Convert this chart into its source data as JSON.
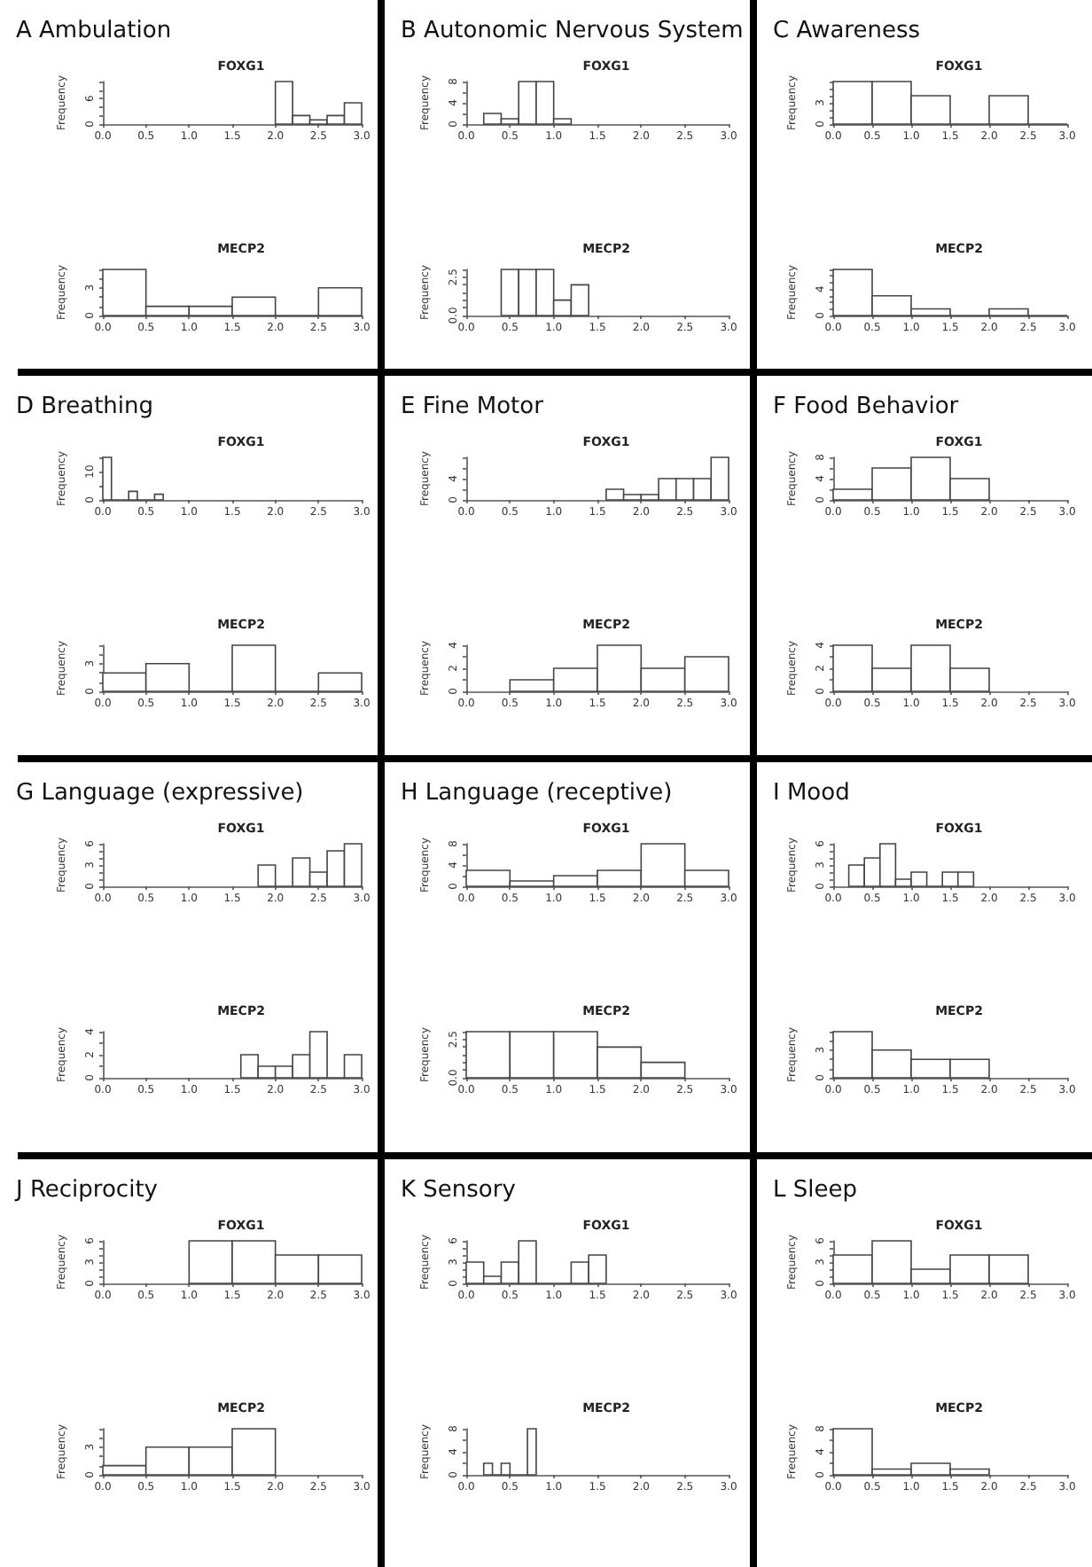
{
  "chart_data": [
    {
      "type": "histogram",
      "title": "A Ambulation",
      "subtitle": "FOXG1",
      "ylabel": "Frequency",
      "bins": [
        2.0,
        2.2,
        2.4,
        2.6,
        2.8,
        3.0
      ],
      "values": [
        10,
        2,
        1,
        2,
        5
      ],
      "xlim": [
        0,
        3
      ],
      "xticks": [
        {
          "value": 0,
          "label": "0.0"
        },
        0.5,
        {
          "value": 1,
          "label": "1.0"
        },
        1.5,
        {
          "value": 2,
          "label": "2.0"
        },
        2.5,
        {
          "value": 3,
          "label": "3.0"
        }
      ],
      "ylim": [
        0,
        10
      ],
      "yticks": [
        0,
        {
          "value": 2,
          "label": null
        },
        {
          "value": 4,
          "label": null
        },
        6,
        {
          "value": 8,
          "label": null
        },
        {
          "value": 10,
          "label": null
        }
      ]
    },
    {
      "type": "histogram",
      "title": "MECP2",
      "ylabel": "Frequency",
      "bins": [
        0,
        0.5,
        1,
        1.5,
        2,
        2.5,
        3
      ],
      "values": [
        5,
        1,
        1,
        2,
        0,
        3
      ],
      "xlim": [
        0,
        3
      ],
      "xticks": [
        {
          "value": 0,
          "label": "0.0"
        },
        0.5,
        {
          "value": 1,
          "label": "1.0"
        },
        1.5,
        {
          "value": 2,
          "label": "2.0"
        },
        2.5,
        {
          "value": 3,
          "label": "3.0"
        }
      ],
      "ylim": [
        0,
        5
      ],
      "yticks": [
        0,
        {
          "value": 1,
          "label": null
        },
        {
          "value": 2,
          "label": null
        },
        3,
        {
          "value": 4,
          "label": null
        },
        {
          "value": 5,
          "label": null
        }
      ]
    },
    {
      "type": "histogram",
      "title": "B Autonomic Nervous System",
      "subtitle": "FOXG1",
      "ylabel": "Frequency",
      "bins": [
        0.2,
        0.4,
        0.6,
        0.8,
        1.0,
        1.2
      ],
      "values": [
        2,
        1,
        8,
        8,
        1
      ],
      "xlim": [
        0,
        3
      ],
      "xticks": [
        {
          "value": 0,
          "label": "0.0"
        },
        0.5,
        {
          "value": 1,
          "label": "1.0"
        },
        1.5,
        {
          "value": 2,
          "label": "2.0"
        },
        2.5,
        {
          "value": 3,
          "label": "3.0"
        }
      ],
      "ylim": [
        0,
        8
      ],
      "yticks": [
        0,
        {
          "value": 2,
          "label": null
        },
        4,
        {
          "value": 6,
          "label": null
        },
        8
      ]
    },
    {
      "type": "histogram",
      "title": "MECP2",
      "ylabel": "Frequency",
      "bins": [
        0.4,
        0.6,
        0.8,
        1.0,
        1.2,
        1.4
      ],
      "values": [
        3,
        3,
        3,
        1,
        2
      ],
      "xlim": [
        0,
        3
      ],
      "xticks": [
        {
          "value": 0,
          "label": "0.0"
        },
        0.5,
        {
          "value": 1,
          "label": "1.0"
        },
        1.5,
        {
          "value": 2,
          "label": "2.0"
        },
        2.5,
        {
          "value": 3,
          "label": "3.0"
        }
      ],
      "ylim": [
        0,
        3
      ],
      "yticks": [
        {
          "value": 0,
          "label": "0.0"
        },
        {
          "value": 0.5,
          "label": null
        },
        {
          "value": 1,
          "label": null
        },
        {
          "value": 1.5,
          "label": null
        },
        {
          "value": 2,
          "label": null
        },
        {
          "value": 2.5,
          "label": "2.5"
        },
        {
          "value": 3,
          "label": null
        }
      ]
    },
    {
      "type": "histogram",
      "title": "C Awareness",
      "subtitle": "FOXG1",
      "ylabel": "Frequency",
      "bins": [
        0,
        0.5,
        1,
        1.5,
        2,
        2.5,
        3
      ],
      "values": [
        6,
        6,
        4,
        0,
        4,
        0
      ],
      "xlim": [
        0,
        3
      ],
      "xticks": [
        {
          "value": 0,
          "label": "0.0"
        },
        0.5,
        {
          "value": 1,
          "label": "1.0"
        },
        1.5,
        {
          "value": 2,
          "label": "2.0"
        },
        2.5,
        {
          "value": 3,
          "label": "3.0"
        }
      ],
      "ylim": [
        0,
        6
      ],
      "yticks": [
        0,
        {
          "value": 1,
          "label": null
        },
        {
          "value": 2,
          "label": null
        },
        3,
        {
          "value": 4,
          "label": null
        },
        {
          "value": 5,
          "label": null
        },
        {
          "value": 6,
          "label": null
        }
      ]
    },
    {
      "type": "histogram",
      "title": "MECP2",
      "ylabel": "Frequency",
      "bins": [
        0,
        0.5,
        1,
        1.5,
        2,
        2.5,
        3
      ],
      "values": [
        7,
        3,
        1,
        0,
        1,
        0
      ],
      "xlim": [
        0,
        3
      ],
      "xticks": [
        {
          "value": 0,
          "label": "0.0"
        },
        0.5,
        {
          "value": 1,
          "label": "1.0"
        },
        1.5,
        {
          "value": 2,
          "label": "2.0"
        },
        2.5,
        {
          "value": 3,
          "label": "3.0"
        }
      ],
      "ylim": [
        0,
        7
      ],
      "yticks": [
        0,
        {
          "value": 1,
          "label": null
        },
        {
          "value": 2,
          "label": null
        },
        {
          "value": 3,
          "label": null
        },
        4,
        {
          "value": 5,
          "label": null
        },
        {
          "value": 6,
          "label": null
        },
        {
          "value": 7,
          "label": null
        }
      ]
    },
    {
      "type": "histogram",
      "title": "D Breathing",
      "subtitle": "FOXG1",
      "ylabel": "Frequency",
      "bins": [
        0,
        0.1,
        0.2,
        0.3,
        0.4,
        0.5,
        0.6,
        0.7
      ],
      "values": [
        15,
        0,
        0,
        3,
        0,
        0,
        2
      ],
      "xlim": [
        0,
        3
      ],
      "xticks": [
        {
          "value": 0,
          "label": "0.0"
        },
        0.5,
        {
          "value": 1,
          "label": "1.0"
        },
        1.5,
        {
          "value": 2,
          "label": "2.0"
        },
        2.5,
        {
          "value": 3,
          "label": "3.0"
        }
      ],
      "ylim": [
        0,
        15
      ],
      "yticks": [
        0,
        {
          "value": 5,
          "label": null
        },
        10,
        {
          "value": 15,
          "label": null
        }
      ]
    },
    {
      "type": "histogram",
      "title": "MECP2",
      "ylabel": "Frequency",
      "bins": [
        0,
        0.5,
        1,
        1.5,
        2,
        2.5,
        3
      ],
      "values": [
        2,
        3,
        0,
        5,
        0,
        2
      ],
      "xlim": [
        0,
        3
      ],
      "xticks": [
        {
          "value": 0,
          "label": "0.0"
        },
        0.5,
        {
          "value": 1,
          "label": "1.0"
        },
        1.5,
        {
          "value": 2,
          "label": "2.0"
        },
        2.5,
        {
          "value": 3,
          "label": "3.0"
        }
      ],
      "ylim": [
        0,
        5
      ],
      "yticks": [
        0,
        {
          "value": 1,
          "label": null
        },
        {
          "value": 2,
          "label": null
        },
        3,
        {
          "value": 4,
          "label": null
        },
        {
          "value": 5,
          "label": null
        }
      ]
    },
    {
      "type": "histogram",
      "title": "E Fine Motor",
      "subtitle": "FOXG1",
      "ylabel": "Frequency",
      "bins": [
        1.6,
        1.8,
        2.0,
        2.2,
        2.4,
        2.6,
        2.8,
        3.0
      ],
      "values": [
        2,
        1,
        1,
        4,
        4,
        4,
        8
      ],
      "xlim": [
        0,
        3
      ],
      "xticks": [
        {
          "value": 0,
          "label": "0.0"
        },
        0.5,
        {
          "value": 1,
          "label": "1.0"
        },
        1.5,
        {
          "value": 2,
          "label": "2.0"
        },
        2.5,
        {
          "value": 3,
          "label": "3.0"
        }
      ],
      "ylim": [
        0,
        8
      ],
      "yticks": [
        0,
        {
          "value": 2,
          "label": null
        },
        4,
        {
          "value": 6,
          "label": null
        },
        {
          "value": 8,
          "label": null
        }
      ]
    },
    {
      "type": "histogram",
      "title": "MECP2",
      "ylabel": "Frequency",
      "bins": [
        0.5,
        1,
        1.5,
        2,
        2.5,
        3
      ],
      "values": [
        1,
        2,
        4,
        2,
        3
      ],
      "xlim": [
        0,
        3
      ],
      "xticks": [
        {
          "value": 0,
          "label": "0.0"
        },
        0.5,
        {
          "value": 1,
          "label": "1.0"
        },
        1.5,
        {
          "value": 2,
          "label": "2.0"
        },
        2.5,
        {
          "value": 3,
          "label": "3.0"
        }
      ],
      "ylim": [
        0,
        4
      ],
      "yticks": [
        0,
        {
          "value": 1,
          "label": null
        },
        2,
        {
          "value": 3,
          "label": null
        },
        4
      ]
    },
    {
      "type": "histogram",
      "title": "F Food Behavior",
      "subtitle": "FOXG1",
      "ylabel": "Frequency",
      "bins": [
        0,
        0.5,
        1,
        1.5,
        2
      ],
      "values": [
        2,
        6,
        8,
        4
      ],
      "xlim": [
        0,
        3
      ],
      "xticks": [
        {
          "value": 0,
          "label": "0.0"
        },
        0.5,
        {
          "value": 1,
          "label": "1.0"
        },
        1.5,
        {
          "value": 2,
          "label": "2.0"
        },
        2.5,
        {
          "value": 3,
          "label": "3.0"
        }
      ],
      "ylim": [
        0,
        8
      ],
      "yticks": [
        0,
        {
          "value": 2,
          "label": null
        },
        4,
        {
          "value": 6,
          "label": null
        },
        8
      ]
    },
    {
      "type": "histogram",
      "title": "MECP2",
      "ylabel": "Frequency",
      "bins": [
        0,
        0.5,
        1,
        1.5,
        2
      ],
      "values": [
        4,
        2,
        4,
        2
      ],
      "xlim": [
        0,
        3
      ],
      "xticks": [
        {
          "value": 0,
          "label": "0.0"
        },
        0.5,
        {
          "value": 1,
          "label": "1.0"
        },
        1.5,
        {
          "value": 2,
          "label": "2.0"
        },
        2.5,
        {
          "value": 3,
          "label": "3.0"
        }
      ],
      "ylim": [
        0,
        4
      ],
      "yticks": [
        0,
        {
          "value": 1,
          "label": null
        },
        2,
        {
          "value": 3,
          "label": null
        },
        4
      ]
    },
    {
      "type": "histogram",
      "title": "G Language (expressive)",
      "subtitle": "FOXG1",
      "ylabel": "Frequency",
      "bins": [
        1.8,
        2.0,
        2.2,
        2.4,
        2.6,
        2.8,
        3.0
      ],
      "values": [
        3,
        0,
        4,
        2,
        5,
        6
      ],
      "xlim": [
        0,
        3
      ],
      "xticks": [
        {
          "value": 0,
          "label": "0.0"
        },
        0.5,
        {
          "value": 1,
          "label": "1.0"
        },
        1.5,
        {
          "value": 2,
          "label": "2.0"
        },
        2.5,
        {
          "value": 3,
          "label": "3.0"
        }
      ],
      "ylim": [
        0,
        6
      ],
      "yticks": [
        0,
        {
          "value": 1,
          "label": null
        },
        {
          "value": 2,
          "label": null
        },
        3,
        {
          "value": 4,
          "label": null
        },
        {
          "value": 5,
          "label": null
        },
        6
      ]
    },
    {
      "type": "histogram",
      "title": "MECP2",
      "ylabel": "Frequency",
      "bins": [
        1.6,
        1.8,
        2.0,
        2.2,
        2.4,
        2.6,
        2.8,
        3.0
      ],
      "values": [
        2,
        1,
        1,
        2,
        4,
        0,
        2
      ],
      "xlim": [
        0,
        3
      ],
      "xticks": [
        {
          "value": 0,
          "label": "0.0"
        },
        0.5,
        {
          "value": 1,
          "label": "1.0"
        },
        1.5,
        {
          "value": 2,
          "label": "2.0"
        },
        2.5,
        {
          "value": 3,
          "label": "3.0"
        }
      ],
      "ylim": [
        0,
        4
      ],
      "yticks": [
        0,
        {
          "value": 1,
          "label": null
        },
        2,
        {
          "value": 3,
          "label": null
        },
        4
      ]
    },
    {
      "type": "histogram",
      "title": "H Language (receptive)",
      "subtitle": "FOXG1",
      "ylabel": "Frequency",
      "bins": [
        0,
        0.5,
        1,
        1.5,
        2,
        2.5,
        3
      ],
      "values": [
        3,
        1,
        2,
        3,
        8,
        3
      ],
      "xlim": [
        0,
        3
      ],
      "xticks": [
        {
          "value": 0,
          "label": "0.0"
        },
        0.5,
        {
          "value": 1,
          "label": "1.0"
        },
        1.5,
        {
          "value": 2,
          "label": "2.0"
        },
        2.5,
        {
          "value": 3,
          "label": "3.0"
        }
      ],
      "ylim": [
        0,
        8
      ],
      "yticks": [
        0,
        {
          "value": 2,
          "label": null
        },
        4,
        {
          "value": 6,
          "label": null
        },
        8
      ]
    },
    {
      "type": "histogram",
      "title": "MECP2",
      "ylabel": "Frequency",
      "bins": [
        0,
        0.5,
        1,
        1.5,
        2,
        2.5
      ],
      "values": [
        3,
        3,
        3,
        2,
        1
      ],
      "xlim": [
        0,
        3
      ],
      "xticks": [
        {
          "value": 0,
          "label": "0.0"
        },
        0.5,
        {
          "value": 1,
          "label": "1.0"
        },
        1.5,
        {
          "value": 2,
          "label": "2.0"
        },
        2.5,
        {
          "value": 3,
          "label": "3.0"
        }
      ],
      "ylim": [
        0,
        3
      ],
      "yticks": [
        {
          "value": 0,
          "label": "0.0"
        },
        {
          "value": 0.5,
          "label": null
        },
        {
          "value": 1,
          "label": null
        },
        {
          "value": 1.5,
          "label": null
        },
        {
          "value": 2,
          "label": null
        },
        {
          "value": 2.5,
          "label": "2.5"
        },
        {
          "value": 3,
          "label": null
        }
      ]
    },
    {
      "type": "histogram",
      "title": "I Mood",
      "subtitle": "FOXG1",
      "ylabel": "Frequency",
      "bins": [
        0.2,
        0.4,
        0.6,
        0.8,
        1.0,
        1.2,
        1.4,
        1.6,
        1.8
      ],
      "values": [
        3,
        4,
        6,
        1,
        2,
        0,
        2,
        2
      ],
      "xlim": [
        0,
        3
      ],
      "xticks": [
        {
          "value": 0,
          "label": "0.0"
        },
        0.5,
        {
          "value": 1,
          "label": "1.0"
        },
        1.5,
        {
          "value": 2,
          "label": "2.0"
        },
        2.5,
        {
          "value": 3,
          "label": "3.0"
        }
      ],
      "ylim": [
        0,
        6
      ],
      "yticks": [
        0,
        {
          "value": 1,
          "label": null
        },
        {
          "value": 2,
          "label": null
        },
        3,
        {
          "value": 4,
          "label": null
        },
        {
          "value": 5,
          "label": null
        },
        6
      ]
    },
    {
      "type": "histogram",
      "title": "MECP2",
      "ylabel": "Frequency",
      "bins": [
        0,
        0.5,
        1,
        1.5,
        2
      ],
      "values": [
        5,
        3,
        2,
        2
      ],
      "xlim": [
        0,
        3
      ],
      "xticks": [
        {
          "value": 0,
          "label": "0.0"
        },
        0.5,
        {
          "value": 1,
          "label": "1.0"
        },
        1.5,
        {
          "value": 2,
          "label": "2.0"
        },
        2.5,
        {
          "value": 3,
          "label": "3.0"
        }
      ],
      "ylim": [
        0,
        5
      ],
      "yticks": [
        0,
        {
          "value": 1,
          "label": null
        },
        {
          "value": 2,
          "label": null
        },
        3,
        {
          "value": 4,
          "label": null
        },
        {
          "value": 5,
          "label": null
        }
      ]
    },
    {
      "type": "histogram",
      "title": "J Reciprocity",
      "subtitle": "FOXG1",
      "ylabel": "Frequency",
      "bins": [
        1,
        1.5,
        2,
        2.5,
        3
      ],
      "values": [
        6,
        6,
        4,
        4
      ],
      "xlim": [
        0,
        3
      ],
      "xticks": [
        {
          "value": 0,
          "label": "0.0"
        },
        0.5,
        {
          "value": 1,
          "label": "1.0"
        },
        1.5,
        {
          "value": 2,
          "label": "2.0"
        },
        2.5,
        {
          "value": 3,
          "label": "3.0"
        }
      ],
      "ylim": [
        0,
        6
      ],
      "yticks": [
        0,
        {
          "value": 1,
          "label": null
        },
        {
          "value": 2,
          "label": null
        },
        3,
        {
          "value": 4,
          "label": null
        },
        {
          "value": 5,
          "label": null
        },
        6
      ]
    },
    {
      "type": "histogram",
      "title": "MECP2",
      "ylabel": "Frequency",
      "bins": [
        0,
        0.5,
        1,
        1.5,
        2
      ],
      "values": [
        1,
        3,
        3,
        5
      ],
      "xlim": [
        0,
        3
      ],
      "xticks": [
        {
          "value": 0,
          "label": "0.0"
        },
        0.5,
        {
          "value": 1,
          "label": "1.0"
        },
        1.5,
        {
          "value": 2,
          "label": "2.0"
        },
        2.5,
        {
          "value": 3,
          "label": "3.0"
        }
      ],
      "ylim": [
        0,
        5
      ],
      "yticks": [
        0,
        {
          "value": 1,
          "label": null
        },
        {
          "value": 2,
          "label": null
        },
        3,
        {
          "value": 4,
          "label": null
        },
        {
          "value": 5,
          "label": null
        }
      ]
    },
    {
      "type": "histogram",
      "title": "K Sensory",
      "subtitle": "FOXG1",
      "ylabel": "Frequency",
      "bins": [
        0,
        0.2,
        0.4,
        0.6,
        0.8,
        1.0,
        1.2,
        1.4,
        1.6
      ],
      "values": [
        3,
        1,
        3,
        6,
        0,
        0,
        3,
        4
      ],
      "xlim": [
        0,
        3
      ],
      "xticks": [
        {
          "value": 0,
          "label": "0.0"
        },
        0.5,
        {
          "value": 1,
          "label": "1.0"
        },
        1.5,
        {
          "value": 2,
          "label": "2.0"
        },
        2.5,
        {
          "value": 3,
          "label": "3.0"
        }
      ],
      "ylim": [
        0,
        6
      ],
      "yticks": [
        0,
        {
          "value": 1,
          "label": null
        },
        {
          "value": 2,
          "label": null
        },
        3,
        {
          "value": 4,
          "label": null
        },
        {
          "value": 5,
          "label": null
        },
        6
      ]
    },
    {
      "type": "histogram",
      "title": "MECP2",
      "ylabel": "Frequency",
      "bins": [
        0.2,
        0.3,
        0.4,
        0.5,
        0.6,
        0.7,
        0.8
      ],
      "values": [
        2,
        0,
        2,
        0,
        0,
        8
      ],
      "xlim": [
        0,
        3
      ],
      "xticks": [
        {
          "value": 0,
          "label": "0.0"
        },
        0.5,
        {
          "value": 1,
          "label": "1.0"
        },
        1.5,
        {
          "value": 2,
          "label": "2.0"
        },
        2.5,
        {
          "value": 3,
          "label": "3.0"
        }
      ],
      "ylim": [
        0,
        8
      ],
      "yticks": [
        0,
        {
          "value": 2,
          "label": null
        },
        4,
        {
          "value": 6,
          "label": null
        },
        8
      ]
    },
    {
      "type": "histogram",
      "title": "L Sleep",
      "subtitle": "FOXG1",
      "ylabel": "Frequency",
      "bins": [
        0,
        0.5,
        1,
        1.5,
        2,
        2.5
      ],
      "values": [
        4,
        6,
        2,
        4,
        4
      ],
      "xlim": [
        0,
        3
      ],
      "xticks": [
        {
          "value": 0,
          "label": "0.0"
        },
        0.5,
        {
          "value": 1,
          "label": "1.0"
        },
        1.5,
        {
          "value": 2,
          "label": "2.0"
        },
        2.5,
        {
          "value": 3,
          "label": "3.0"
        }
      ],
      "ylim": [
        0,
        6
      ],
      "yticks": [
        0,
        {
          "value": 1,
          "label": null
        },
        {
          "value": 2,
          "label": null
        },
        3,
        {
          "value": 4,
          "label": null
        },
        {
          "value": 5,
          "label": null
        },
        6
      ]
    },
    {
      "type": "histogram",
      "title": "MECP2",
      "ylabel": "Frequency",
      "bins": [
        0,
        0.5,
        1,
        1.5,
        2
      ],
      "values": [
        8,
        1,
        2,
        1
      ],
      "xlim": [
        0,
        3
      ],
      "xticks": [
        {
          "value": 0,
          "label": "0.0"
        },
        0.5,
        {
          "value": 1,
          "label": "1.0"
        },
        1.5,
        {
          "value": 2,
          "label": "2.0"
        },
        2.5,
        {
          "value": 3,
          "label": "3.0"
        }
      ],
      "ylim": [
        0,
        8
      ],
      "yticks": [
        0,
        {
          "value": 2,
          "label": null
        },
        4,
        {
          "value": 6,
          "label": null
        },
        8
      ]
    }
  ]
}
